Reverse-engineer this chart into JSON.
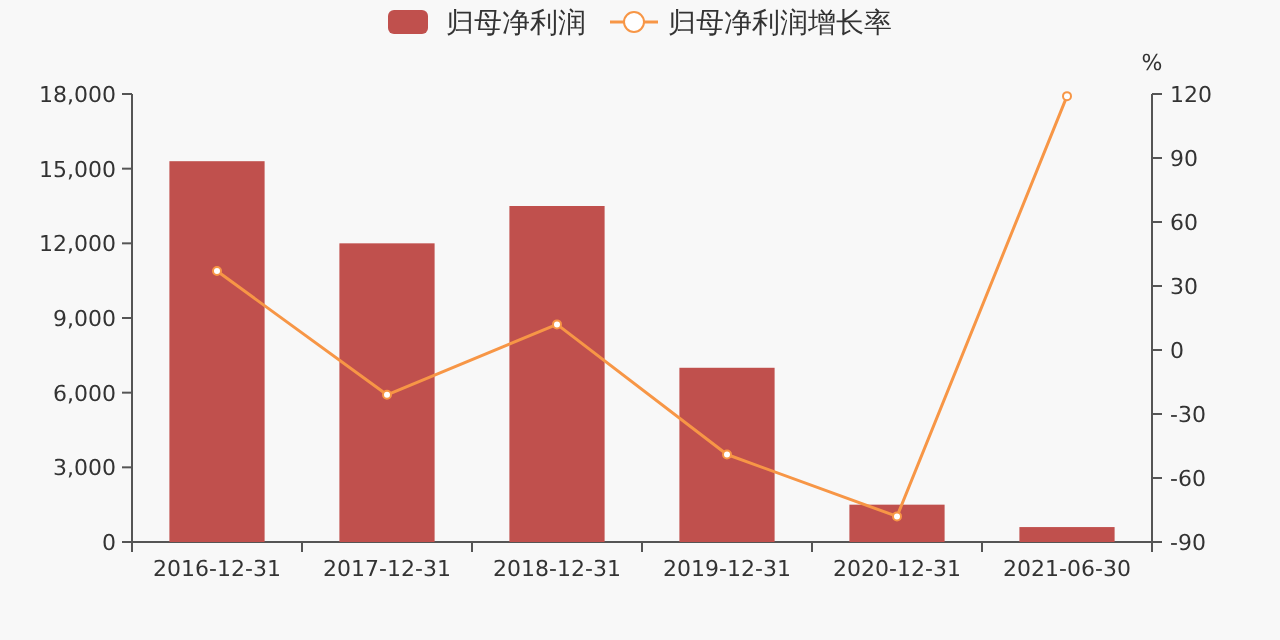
{
  "chart_data": {
    "type": "bar",
    "categories": [
      "2016-12-31",
      "2017-12-31",
      "2018-12-31",
      "2019-12-31",
      "2020-12-31",
      "2021-06-30"
    ],
    "series": [
      {
        "name": "归母净利润",
        "color": "#c0504d",
        "values": [
          15300,
          12000,
          13500,
          7000,
          1500,
          600
        ]
      },
      {
        "name": "归母净利润增长率",
        "type": "line",
        "axis": "y2",
        "color": "#f79646",
        "marker": "circle",
        "values": [
          37,
          -21,
          12,
          -49,
          -78,
          119
        ]
      }
    ],
    "ylim": [
      0,
      18000
    ],
    "yticks": [
      {
        "value": 0,
        "label": "0"
      },
      {
        "value": 3000,
        "label": "3,000"
      },
      {
        "value": 6000,
        "label": "6,000"
      },
      {
        "value": 9000,
        "label": "9,000"
      },
      {
        "value": 12000,
        "label": "12,000"
      },
      {
        "value": 15000,
        "label": "15,000"
      },
      {
        "value": 18000,
        "label": "18,000"
      }
    ],
    "y2lim": [
      -90,
      120
    ],
    "y2ticks": [
      -90,
      -60,
      -30,
      0,
      30,
      60,
      90,
      120
    ],
    "y2label": "%",
    "legend": "top",
    "grid": false
  }
}
